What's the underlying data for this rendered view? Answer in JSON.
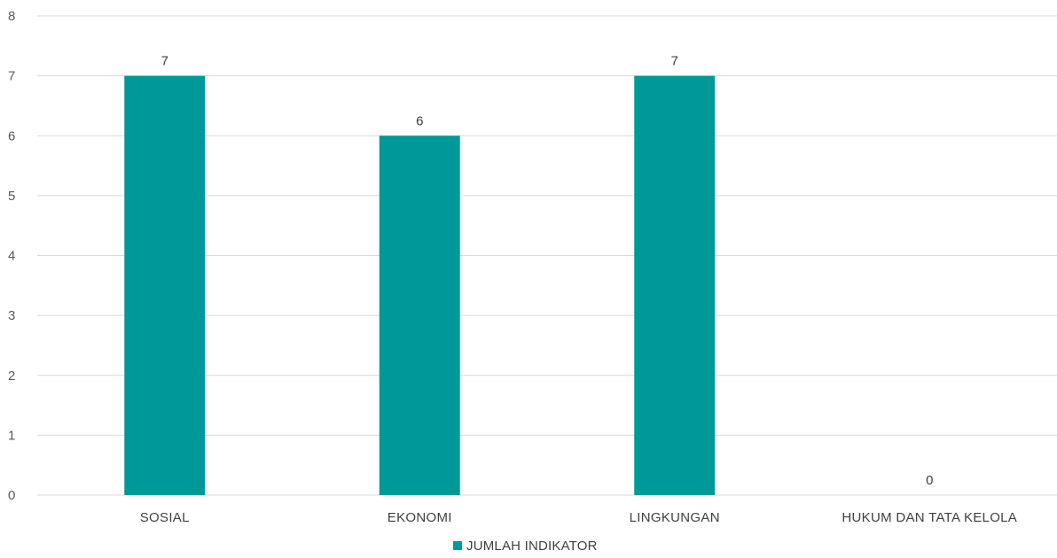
{
  "chart_data": {
    "type": "bar",
    "categories": [
      "SOSIAL",
      "EKONOMI",
      "LINGKUNGAN",
      "HUKUM DAN TATA KELOLA"
    ],
    "series": [
      {
        "name": "JUMLAH INDIKATOR",
        "values": [
          7,
          6,
          7,
          0
        ],
        "color": "#009999"
      }
    ],
    "ylim": [
      0,
      8
    ],
    "yticks": [
      0,
      1,
      2,
      3,
      4,
      5,
      6,
      7,
      8
    ],
    "grid": true,
    "legend": "bottom",
    "data_labels": true
  }
}
